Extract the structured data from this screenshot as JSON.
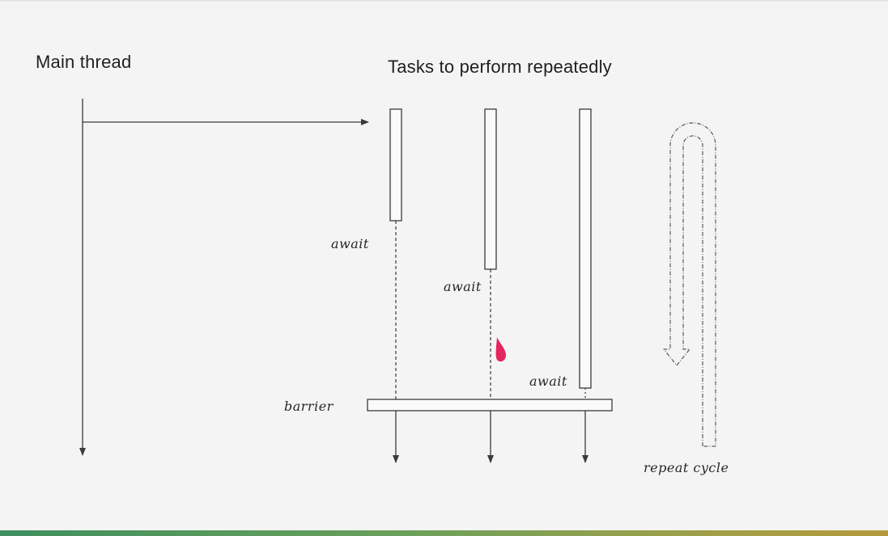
{
  "titles": {
    "main_thread": "Main thread",
    "tasks": "Tasks to perform repeatedly"
  },
  "labels": {
    "await_1": "await",
    "await_2": "await",
    "await_3": "await",
    "barrier": "barrier",
    "repeat_cycle": "repeat cycle"
  },
  "colors": {
    "background": "#f4f4f4",
    "stroke": "#3a3a3a",
    "pointer": "#e3124f"
  },
  "icons": {
    "pointer": "laser-pointer-icon"
  }
}
